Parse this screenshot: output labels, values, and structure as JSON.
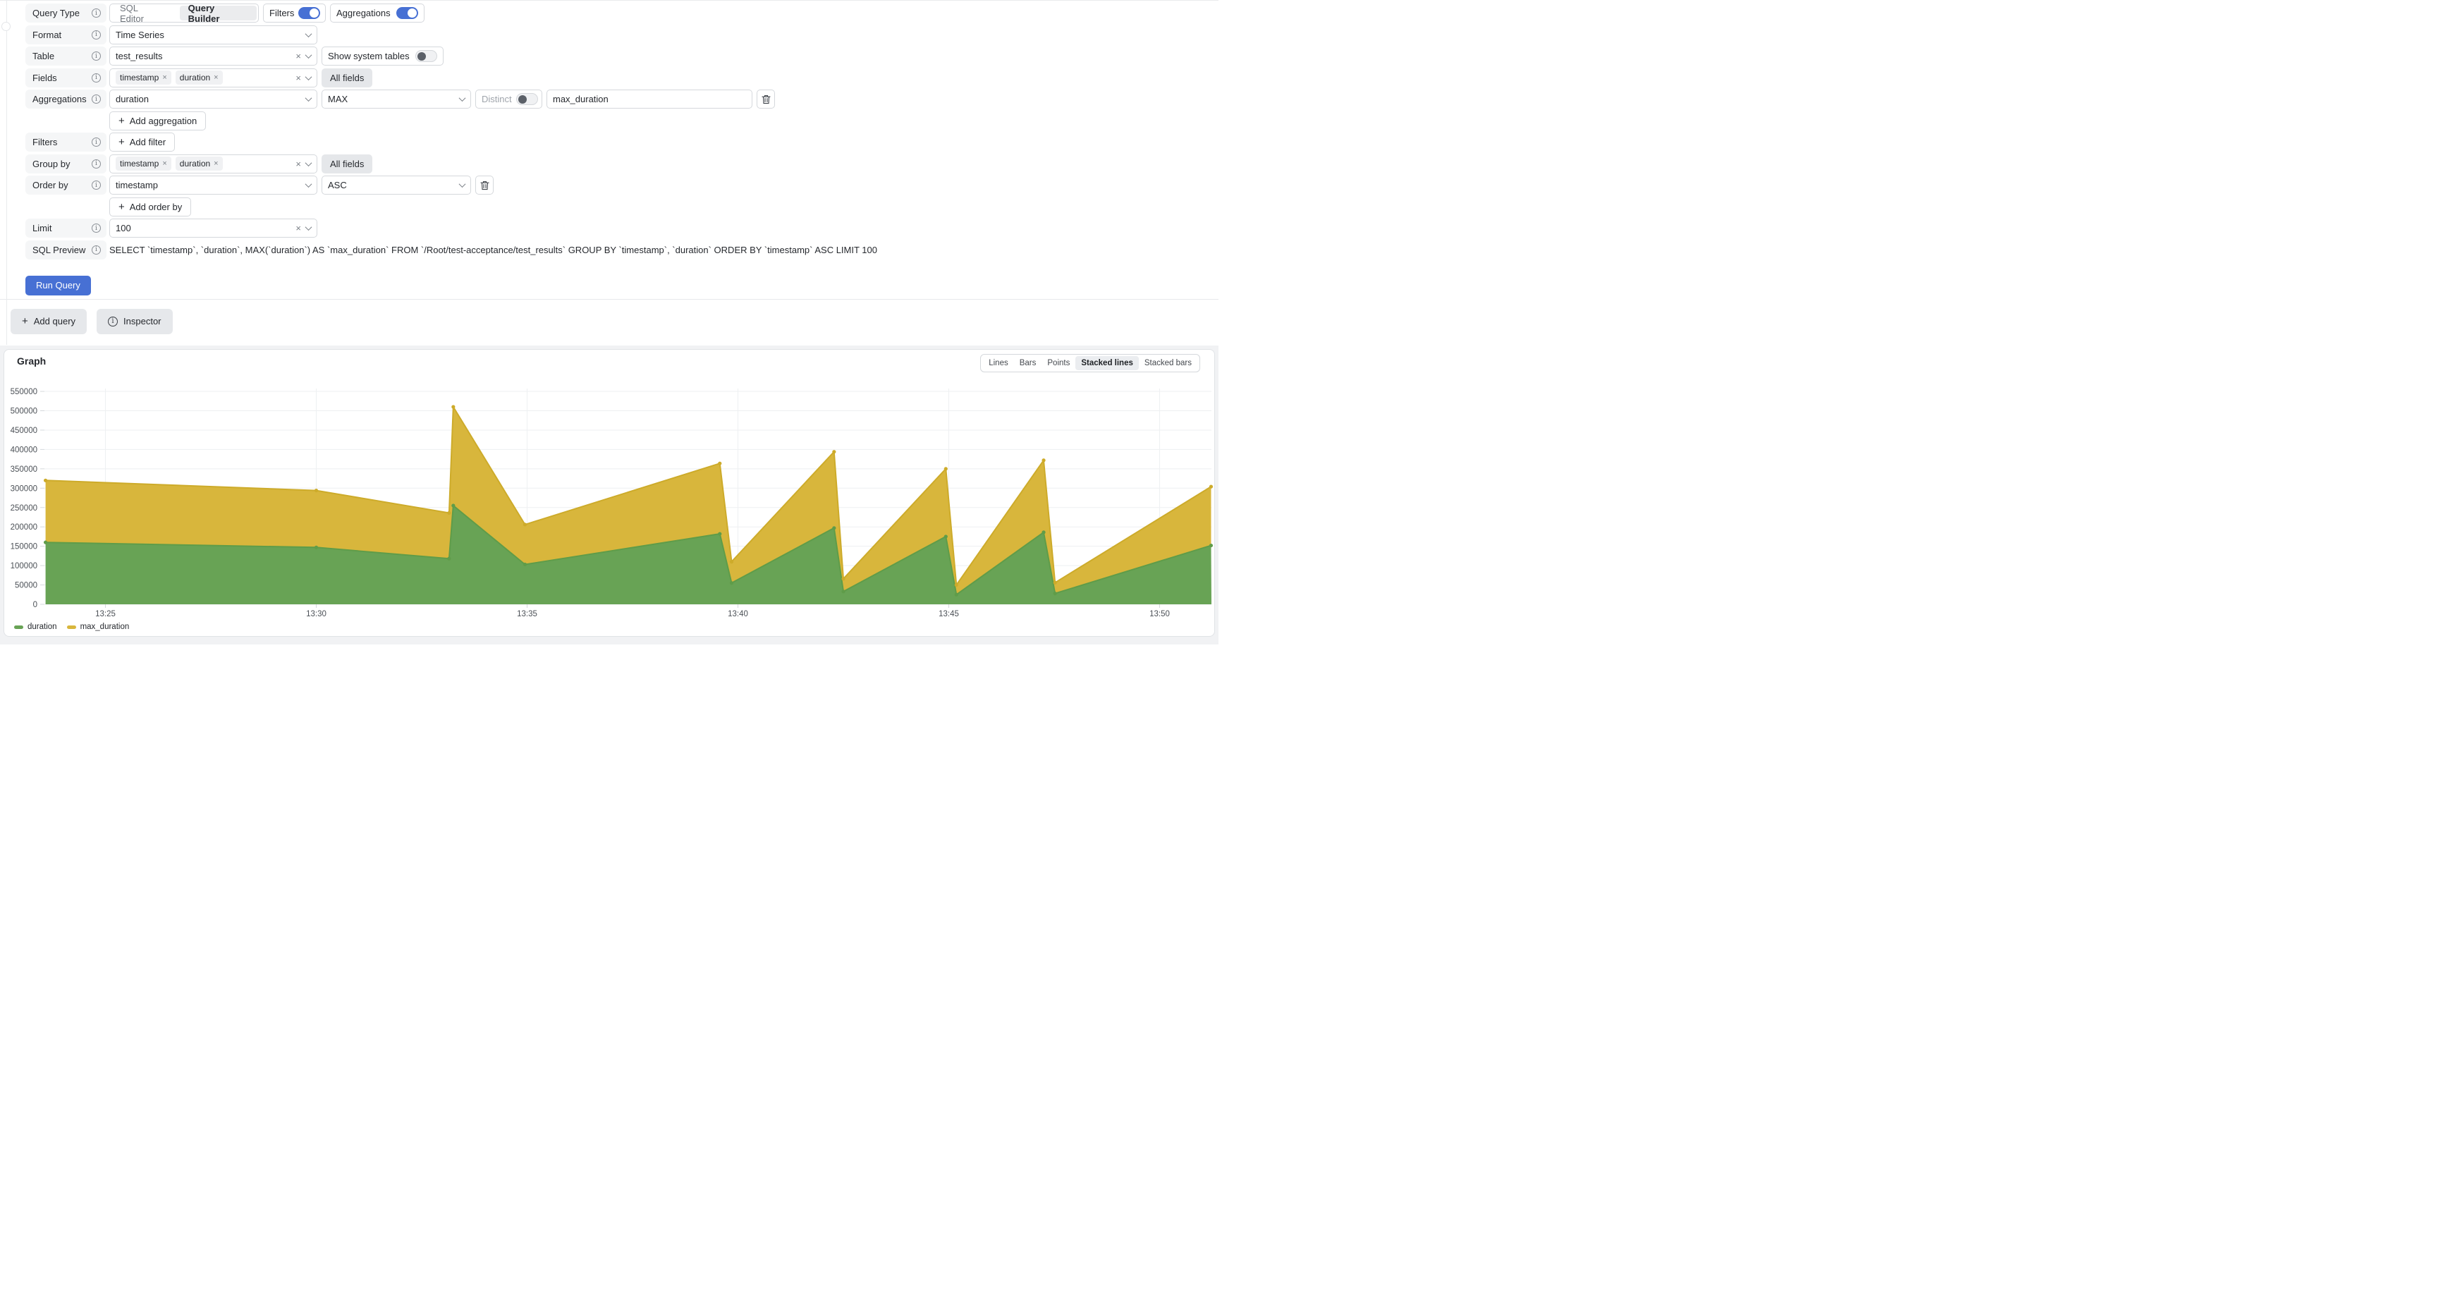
{
  "glyphs": {
    "clear": "×",
    "plus": "+"
  },
  "form": {
    "query_type": {
      "label": "Query Type",
      "options": [
        "SQL Editor",
        "Query Builder"
      ],
      "selected": "Query Builder"
    },
    "filters_switch": {
      "label": "Filters",
      "on": true
    },
    "aggregations_switch": {
      "label": "Aggregations",
      "on": true
    },
    "format": {
      "label": "Format",
      "value": "Time Series"
    },
    "table": {
      "label": "Table",
      "value": "test_results"
    },
    "show_system_tables": {
      "label": "Show system tables",
      "on": false
    },
    "fields": {
      "label": "Fields",
      "chips": [
        "timestamp",
        "duration"
      ],
      "all_fields": "All fields"
    },
    "aggregation": {
      "label": "Aggregations",
      "column": "duration",
      "function": "MAX",
      "distinct_label": "Distinct",
      "distinct_on": false,
      "alias": "max_duration",
      "add_button": "Add aggregation"
    },
    "filters": {
      "label": "Filters",
      "add_button": "Add filter"
    },
    "group_by": {
      "label": "Group by",
      "chips": [
        "timestamp",
        "duration"
      ],
      "all_fields": "All fields"
    },
    "order_by": {
      "label": "Order by",
      "column": "timestamp",
      "direction": "ASC",
      "add_button": "Add order by"
    },
    "limit": {
      "label": "Limit",
      "value": "100"
    },
    "sql_preview": {
      "label": "SQL Preview",
      "sql": "SELECT `timestamp`, `duration`, MAX(`duration`) AS `max_duration` FROM `/Root/test-acceptance/test_results` GROUP BY `timestamp`, `duration` ORDER BY `timestamp` ASC LIMIT 100"
    },
    "run_query_button": "Run Query",
    "add_query_button": "Add query",
    "inspector_button": "Inspector"
  },
  "graph": {
    "title": "Graph",
    "modes": [
      "Lines",
      "Bars",
      "Points",
      "Stacked lines",
      "Stacked bars"
    ],
    "selected_mode": "Stacked lines"
  },
  "chart_data": {
    "type": "area",
    "stacked": true,
    "title": "Graph",
    "x_axis": {
      "ticks": [
        "13:25",
        "13:30",
        "13:35",
        "13:40",
        "13:45",
        "13:50"
      ],
      "unit": "minutes after 13:00",
      "start": 23.58,
      "end": 51.22
    },
    "y_axis": {
      "min": 0,
      "max": 550000,
      "step": 50000
    },
    "grid": true,
    "legend_position": "bottom",
    "series": [
      {
        "name": "duration",
        "color": "#68a355",
        "line_color": "#5f9c49",
        "x_minutes": [
          23.58,
          30.0,
          33.15,
          33.25,
          34.95,
          39.57,
          39.85,
          42.28,
          42.5,
          44.93,
          45.18,
          47.25,
          47.52,
          51.22
        ],
        "values": [
          160000,
          147000,
          118000,
          255000,
          103000,
          182000,
          55000,
          197000,
          33000,
          175000,
          25000,
          186000,
          28000,
          152000
        ]
      },
      {
        "name": "max_duration",
        "color": "#d8b63c",
        "line_color": "#cdab2a",
        "x_minutes": [
          23.58,
          30.0,
          33.15,
          33.25,
          34.95,
          39.57,
          39.85,
          42.28,
          42.5,
          44.93,
          45.18,
          47.25,
          47.52,
          51.22
        ],
        "values": [
          160000,
          147000,
          118000,
          255000,
          103000,
          182000,
          55000,
          197000,
          33000,
          175000,
          25000,
          186000,
          28000,
          152000
        ]
      }
    ]
  }
}
